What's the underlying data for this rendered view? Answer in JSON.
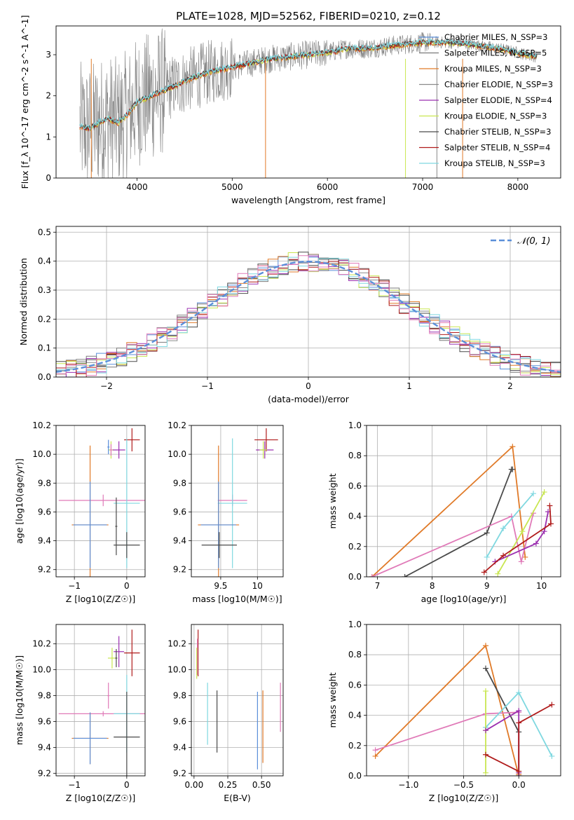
{
  "figure_title": "PLATE=1028, MJD=52562, FIBERID=0210, z=0.12",
  "colors": {
    "Chabrier MILES": "#5b8fd9",
    "Salpeter MILES": "#7a7a7a",
    "Kroupa MILES": "#e07a28",
    "Chabrier ELODIE": "#8a8a8a",
    "Salpeter ELODIE": "#9b30b0",
    "Kroupa ELODIE": "#c8e650",
    "Chabrier STELIB": "#4a4a4a",
    "Salpeter STELIB": "#b01c1c",
    "Kroupa STELIB": "#7fd8e0",
    "Pink model": "#e07ab8",
    "Normal curve": "#5b8fd9"
  },
  "chart_data": [
    {
      "id": "spectrum",
      "type": "line",
      "title": "PLATE=1028, MJD=52562, FIBERID=0210, z=0.12",
      "xlabel": "wavelength [Angstrom, rest frame]",
      "ylabel": "Flux [f_λ 10^-17 erg cm^-2 s^-1 A^-1]",
      "xlim": [
        3150,
        8450
      ],
      "ylim": [
        0,
        3.7
      ],
      "xticks": [
        4000,
        5000,
        6000,
        7000,
        8000
      ],
      "yticks": [
        0,
        1,
        2,
        3
      ],
      "grid": false,
      "legend_position": "top-right",
      "legend": [
        "Chabrier MILES, N_SSP=3",
        "Salpeter MILES, N_SSP=5",
        "Kroupa MILES, N_SSP=3",
        "Chabrier ELODIE, N_SSP=3",
        "Salpeter ELODIE, N_SSP=4",
        "Kroupa ELODIE, N_SSP=3",
        "Chabrier STELIB, N_SSP=3",
        "Salpeter STELIB, N_SSP=4",
        "Kroupa STELIB, N_SSP=3"
      ],
      "continuum": {
        "x": [
          3400,
          3500,
          3600,
          3700,
          3800,
          3900,
          4000,
          4200,
          4400,
          4600,
          4800,
          5000,
          5200,
          5400,
          5600,
          5800,
          6000,
          6200,
          6400,
          6600,
          6800,
          7000,
          7200,
          7400,
          7600,
          7800,
          8000,
          8200
        ],
        "y": [
          1.25,
          1.2,
          1.35,
          1.45,
          1.35,
          1.55,
          1.85,
          2.05,
          2.25,
          2.45,
          2.6,
          2.7,
          2.8,
          2.9,
          2.95,
          3.0,
          3.05,
          3.15,
          3.15,
          3.2,
          3.25,
          3.3,
          3.3,
          3.28,
          3.22,
          3.15,
          3.05,
          2.95
        ]
      }
    },
    {
      "id": "residuals",
      "type": "histogram",
      "xlabel": "(data-model)/error",
      "ylabel": "Normed distribution",
      "xlim": [
        -2.5,
        2.5
      ],
      "ylim": [
        0,
        0.52
      ],
      "xticks": [
        -2,
        -1,
        0,
        1,
        2
      ],
      "yticks": [
        0.0,
        0.1,
        0.2,
        0.3,
        0.4,
        0.5
      ],
      "grid": true,
      "legend_position": "top-right",
      "legend": [
        "𝒩(0, 1)"
      ],
      "bin_width": 0.1,
      "curve": "normal(0,1)"
    },
    {
      "id": "age_vs_Z",
      "type": "scatter",
      "xlabel": "Z [log10(Z/Z☉)]",
      "ylabel": "age  [log10(age/yr)]",
      "xlim": [
        -1.35,
        0.35
      ],
      "ylim": [
        9.15,
        10.2
      ],
      "xticks": [
        -1,
        0
      ],
      "yticks": [
        9.2,
        9.4,
        9.6,
        9.8,
        10.0,
        10.2
      ],
      "grid": true,
      "points": [
        {
          "model": "Salpeter STELIB",
          "x": 0.1,
          "y": 10.1,
          "xerr": 0.15,
          "yerr": 0.08
        },
        {
          "model": "Kroupa ELODIE",
          "x": -0.3,
          "y": 10.03,
          "xerr": 0.05,
          "yerr": 0.06
        },
        {
          "model": "Salpeter ELODIE",
          "x": -0.15,
          "y": 10.03,
          "xerr": 0.12,
          "yerr": 0.06
        },
        {
          "model": "Chabrier MILES",
          "x": -0.35,
          "y": 10.05,
          "xerr": 0.02,
          "yerr": 0.05
        },
        {
          "model": "Pink model",
          "x": -0.3,
          "y": 10.03,
          "xerr": 0.02,
          "yerr": 0.04
        },
        {
          "model": "Pink model",
          "x": -0.45,
          "y": 9.68,
          "xerr": 0.85,
          "yerr": 0.04
        },
        {
          "model": "Kroupa STELIB",
          "x": 0.0,
          "y": 9.66,
          "xerr": 0.25,
          "yerr": 0.45
        },
        {
          "model": "Kroupa MILES",
          "x": -0.7,
          "y": 9.51,
          "xerr": 0.35,
          "yerr": 0.55
        },
        {
          "model": "Chabrier MILES",
          "x": -0.7,
          "y": 9.51,
          "xerr": 0.32,
          "yerr": 0.3
        },
        {
          "model": "Chabrier STELIB",
          "x": 0.0,
          "y": 9.37,
          "xerr": 0.25,
          "yerr": 0.09
        },
        {
          "model": "Chabrier STELIB",
          "x": -0.2,
          "y": 9.5,
          "xerr": 0.02,
          "yerr": 0.2
        }
      ]
    },
    {
      "id": "age_vs_mass",
      "type": "scatter",
      "xlabel": "mass [log10(M/M☉)]",
      "ylabel": "",
      "xlim": [
        9.1,
        10.35
      ],
      "ylim": [
        9.15,
        10.2
      ],
      "xticks": [
        9.5,
        10.0
      ],
      "yticks": [
        9.2,
        9.4,
        9.6,
        9.8,
        10.0,
        10.2
      ],
      "grid": true,
      "points": [
        {
          "model": "Salpeter STELIB",
          "x": 10.12,
          "y": 10.1,
          "xerr": 0.16,
          "yerr": 0.08
        },
        {
          "model": "Salpeter ELODIE",
          "x": 10.1,
          "y": 10.03,
          "xerr": 0.12,
          "yerr": 0.06
        },
        {
          "model": "Kroupa ELODIE",
          "x": 10.08,
          "y": 10.03,
          "xerr": 0.05,
          "yerr": 0.06
        },
        {
          "model": "Pink model",
          "x": 9.66,
          "y": 9.68,
          "xerr": 0.2,
          "yerr": 0.04
        },
        {
          "model": "Kroupa STELIB",
          "x": 9.66,
          "y": 9.66,
          "xerr": 0.2,
          "yerr": 0.45
        },
        {
          "model": "Kroupa MILES",
          "x": 9.47,
          "y": 9.51,
          "xerr": 0.28,
          "yerr": 0.55
        },
        {
          "model": "Chabrier MILES",
          "x": 9.47,
          "y": 9.51,
          "xerr": 0.24,
          "yerr": 0.3
        },
        {
          "model": "Chabrier STELIB",
          "x": 9.48,
          "y": 9.37,
          "xerr": 0.24,
          "yerr": 0.09
        }
      ]
    },
    {
      "id": "mass_weight_vs_age",
      "type": "line",
      "xlabel": "age  [log10(age/yr)]",
      "ylabel": "mass weight",
      "xlim": [
        6.8,
        10.35
      ],
      "ylim": [
        0,
        1.0
      ],
      "xticks": [
        7,
        8,
        9,
        10
      ],
      "yticks": [
        0.0,
        0.2,
        0.4,
        0.6,
        0.8,
        1.0
      ],
      "grid": true,
      "series": [
        {
          "model": "Kroupa MILES",
          "x": [
            6.9,
            9.47,
            9.7
          ],
          "y": [
            0.0,
            0.86,
            0.13
          ]
        },
        {
          "model": "Chabrier STELIB",
          "x": [
            7.5,
            9.0,
            9.45,
            9.47
          ],
          "y": [
            0.0,
            0.29,
            0.71,
            0.71
          ]
        },
        {
          "model": "Pink model",
          "x": [
            6.9,
            9.45,
            9.63,
            9.85
          ],
          "y": [
            0.0,
            0.4,
            0.1,
            0.42
          ]
        },
        {
          "model": "Kroupa STELIB",
          "x": [
            9.0,
            9.3,
            9.85
          ],
          "y": [
            0.13,
            0.32,
            0.55
          ]
        },
        {
          "model": "Kroupa ELODIE",
          "x": [
            9.2,
            9.65,
            10.05
          ],
          "y": [
            0.02,
            0.3,
            0.56
          ]
        },
        {
          "model": "Salpeter ELODIE",
          "x": [
            9.15,
            9.9,
            10.05,
            10.12
          ],
          "y": [
            0.1,
            0.22,
            0.3,
            0.43
          ]
        },
        {
          "model": "Salpeter STELIB",
          "x": [
            8.95,
            9.3,
            10.17,
            10.15
          ],
          "y": [
            0.03,
            0.14,
            0.35,
            0.47
          ]
        }
      ]
    },
    {
      "id": "mass_vs_Z",
      "type": "scatter",
      "xlabel": "Z [log10(Z/Z☉)]",
      "ylabel": "mass [log10(M/M☉)]",
      "xlim": [
        -1.35,
        0.35
      ],
      "ylim": [
        9.18,
        10.35
      ],
      "xticks": [
        -1,
        0
      ],
      "yticks": [
        9.2,
        9.4,
        9.6,
        9.8,
        10.0,
        10.2
      ],
      "grid": true,
      "points": [
        {
          "model": "Salpeter STELIB",
          "x": 0.1,
          "y": 10.13,
          "xerr": 0.15,
          "yerr": 0.18
        },
        {
          "model": "Salpeter ELODIE",
          "x": -0.15,
          "y": 10.14,
          "xerr": 0.1,
          "yerr": 0.12
        },
        {
          "model": "Kroupa ELODIE",
          "x": -0.28,
          "y": 10.09,
          "xerr": 0.08,
          "yerr": 0.08
        },
        {
          "model": "Chabrier STELIB",
          "x": -0.2,
          "y": 10.09,
          "xerr": 0.02,
          "yerr": 0.07
        },
        {
          "model": "Pink model",
          "x": -0.35,
          "y": 9.8,
          "xerr": 0.02,
          "yerr": 0.1
        },
        {
          "model": "Pink model",
          "x": -0.45,
          "y": 9.66,
          "xerr": 0.85,
          "yerr": 0.02
        },
        {
          "model": "Kroupa STELIB",
          "x": 0.0,
          "y": 9.66,
          "xerr": 0.25,
          "yerr": 0.3
        },
        {
          "model": "Kroupa MILES",
          "x": -0.7,
          "y": 9.47,
          "xerr": 0.35,
          "yerr": 0.2
        },
        {
          "model": "Chabrier MILES",
          "x": -0.7,
          "y": 9.47,
          "xerr": 0.32,
          "yerr": 0.2
        },
        {
          "model": "Chabrier STELIB",
          "x": 0.0,
          "y": 9.48,
          "xerr": 0.25,
          "yerr": 0.35
        }
      ]
    },
    {
      "id": "mass_vs_ebv",
      "type": "scatter",
      "xlabel": "E(B-V)",
      "ylabel": "",
      "xlim": [
        -0.02,
        0.66
      ],
      "ylim": [
        9.18,
        10.35
      ],
      "xticks": [
        0.0,
        0.25,
        0.5
      ],
      "xtick_labels": [
        "0.00",
        "0.25",
        "0.50"
      ],
      "yticks": [
        9.2,
        9.4,
        9.6,
        9.8,
        10.0,
        10.2
      ],
      "grid": true,
      "points": [
        {
          "model": "Salpeter STELIB",
          "x": 0.03,
          "y": 10.13,
          "xerr": 0,
          "yerr": 0.18
        },
        {
          "model": "Pink model",
          "x": 0.025,
          "y": 10.1,
          "xerr": 0,
          "yerr": 0.14
        },
        {
          "model": "Kroupa ELODIE",
          "x": 0.02,
          "y": 10.05,
          "xerr": 0,
          "yerr": 0.12
        },
        {
          "model": "Kroupa STELIB",
          "x": 0.1,
          "y": 9.66,
          "xerr": 0,
          "yerr": 0.24
        },
        {
          "model": "Chabrier STELIB",
          "x": 0.17,
          "y": 9.6,
          "xerr": 0,
          "yerr": 0.24
        },
        {
          "model": "Chabrier MILES",
          "x": 0.47,
          "y": 9.53,
          "xerr": 0,
          "yerr": 0.3
        },
        {
          "model": "Kroupa MILES",
          "x": 0.51,
          "y": 9.56,
          "xerr": 0,
          "yerr": 0.28
        },
        {
          "model": "Pink model",
          "x": 0.64,
          "y": 9.71,
          "xerr": 0,
          "yerr": 0.19
        }
      ]
    },
    {
      "id": "mass_weight_vs_Z",
      "type": "line",
      "xlabel": "Z [log10(Z/Z☉)]",
      "ylabel": "mass weight",
      "xlim": [
        -1.38,
        0.38
      ],
      "ylim": [
        0,
        1.0
      ],
      "xticks": [
        -1.0,
        -0.5,
        0.0
      ],
      "xtick_labels": [
        "−1.0",
        "−0.5",
        "0.0"
      ],
      "yticks": [
        0.0,
        0.2,
        0.4,
        0.6,
        0.8,
        1.0
      ],
      "grid": true,
      "series": [
        {
          "model": "Kroupa MILES",
          "x": [
            -1.3,
            -0.3,
            0.0,
            0.0
          ],
          "y": [
            0.13,
            0.86,
            0.0,
            0.01
          ]
        },
        {
          "model": "Chabrier STELIB",
          "x": [
            -0.3,
            0.0,
            0.0
          ],
          "y": [
            0.71,
            0.29,
            0.0
          ]
        },
        {
          "model": "Pink model",
          "x": [
            -1.3,
            -0.3,
            0.0
          ],
          "y": [
            0.17,
            0.41,
            0.42
          ]
        },
        {
          "model": "Kroupa STELIB",
          "x": [
            -0.3,
            0.0,
            0.3
          ],
          "y": [
            0.32,
            0.55,
            0.13
          ]
        },
        {
          "model": "Kroupa ELODIE",
          "x": [
            -0.3,
            -0.3,
            -0.3
          ],
          "y": [
            0.02,
            0.3,
            0.56
          ]
        },
        {
          "model": "Salpeter ELODIE",
          "x": [
            -0.3,
            0.0,
            0.0
          ],
          "y": [
            0.3,
            0.43,
            0.02
          ]
        },
        {
          "model": "Salpeter STELIB",
          "x": [
            -0.3,
            0.0,
            0.0,
            0.3
          ],
          "y": [
            0.14,
            0.03,
            0.35,
            0.47
          ]
        }
      ]
    }
  ]
}
